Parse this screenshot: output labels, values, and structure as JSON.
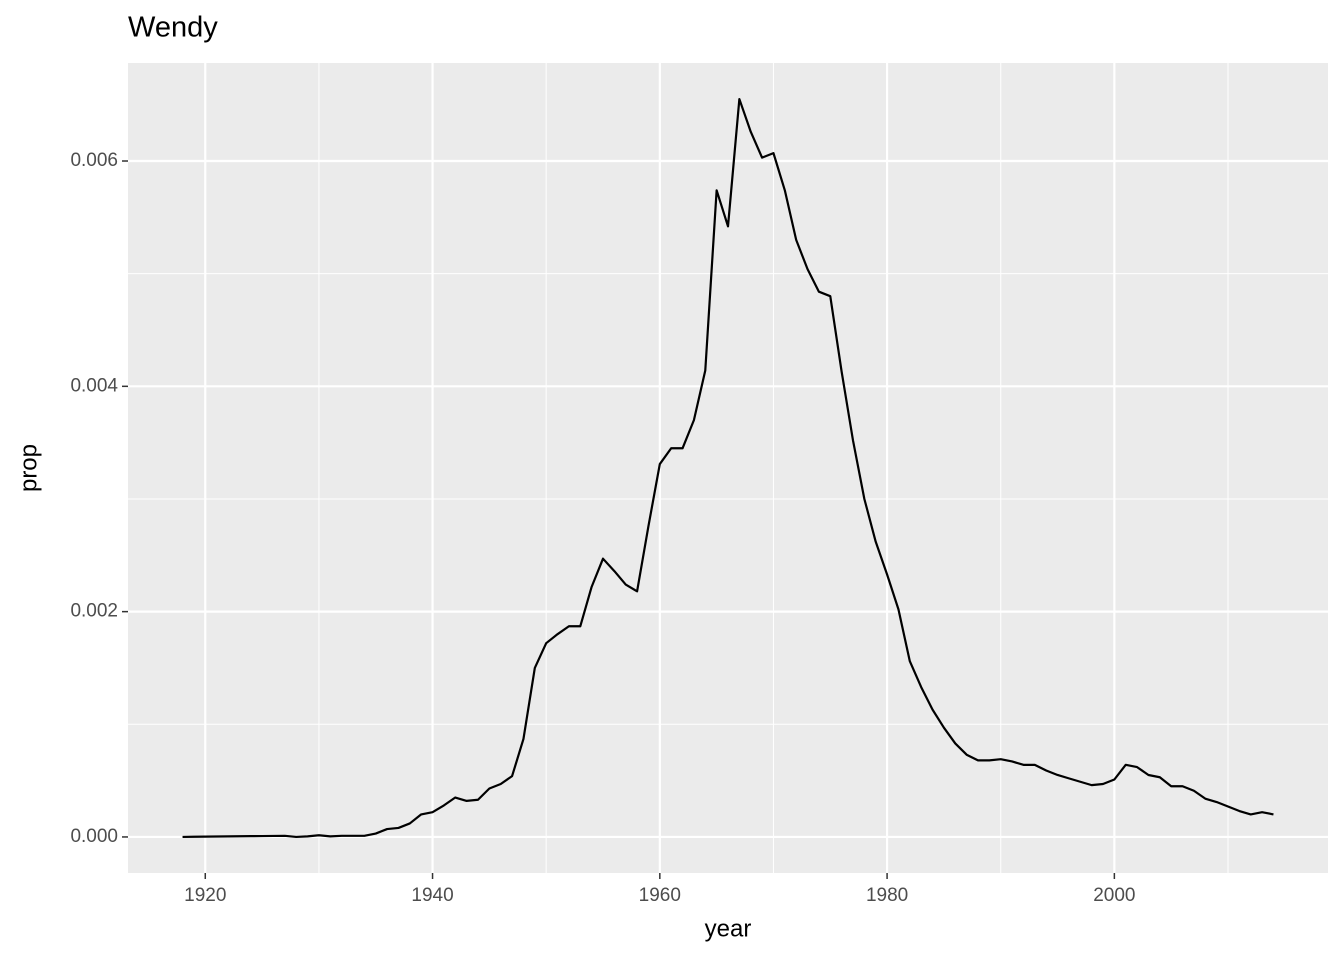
{
  "chart_data": {
    "type": "line",
    "title": "Wendy",
    "x_label": "year",
    "y_label": "prop",
    "x": [
      1918,
      1919,
      1920,
      1921,
      1922,
      1923,
      1924,
      1925,
      1926,
      1927,
      1928,
      1929,
      1930,
      1931,
      1932,
      1933,
      1934,
      1935,
      1936,
      1937,
      1938,
      1939,
      1940,
      1941,
      1942,
      1943,
      1944,
      1945,
      1946,
      1947,
      1948,
      1949,
      1950,
      1951,
      1952,
      1953,
      1954,
      1955,
      1956,
      1957,
      1958,
      1959,
      1960,
      1961,
      1962,
      1963,
      1964,
      1965,
      1966,
      1967,
      1968,
      1969,
      1970,
      1971,
      1972,
      1973,
      1974,
      1975,
      1976,
      1977,
      1978,
      1979,
      1980,
      1981,
      1982,
      1983,
      1984,
      1985,
      1986,
      1987,
      1988,
      1989,
      1990,
      1991,
      1992,
      1993,
      1994,
      1995,
      1996,
      1997,
      1998,
      1999,
      2000,
      2001,
      2002,
      2003,
      2004,
      2005,
      2006,
      2007,
      2008,
      2009,
      2010,
      2011,
      2012,
      2013,
      2014
    ],
    "values": [
      0,
      2e-06,
      3e-06,
      4e-06,
      5e-06,
      6e-06,
      7e-06,
      8e-06,
      9e-06,
      1e-05,
      0,
      5e-06,
      1.5e-05,
      5e-06,
      1e-05,
      1e-05,
      1e-05,
      3e-05,
      7e-05,
      8e-05,
      0.00012,
      0.0002,
      0.00022,
      0.00028,
      0.00035,
      0.00032,
      0.00033,
      0.00043,
      0.00047,
      0.00054,
      0.00087,
      0.0015,
      0.00172,
      0.0018,
      0.00187,
      0.00187,
      0.00222,
      0.00247,
      0.00236,
      0.00224,
      0.00218,
      0.00276,
      0.00331,
      0.00345,
      0.00345,
      0.0037,
      0.00414,
      0.00574,
      0.00542,
      0.00655,
      0.00626,
      0.00603,
      0.00607,
      0.00574,
      0.0053,
      0.00504,
      0.00484,
      0.0048,
      0.00413,
      0.00352,
      0.003,
      0.00262,
      0.00233,
      0.00202,
      0.00156,
      0.00133,
      0.00113,
      0.00097,
      0.00083,
      0.00073,
      0.00068,
      0.00068,
      0.00069,
      0.00067,
      0.00064,
      0.00064,
      0.00059,
      0.00055,
      0.00052,
      0.00049,
      0.00046,
      0.00047,
      0.00051,
      0.00064,
      0.00062,
      0.00055,
      0.00053,
      0.00045,
      0.00045,
      0.00041,
      0.00034,
      0.00031,
      0.00027,
      0.00023,
      0.0002,
      0.00022,
      0.0002
    ],
    "color": "#000000",
    "xlim": [
      1913.2,
      2018.8
    ],
    "xticks": [
      1920,
      1940,
      1960,
      1980,
      2000
    ],
    "ylim": [
      -0.00032,
      0.00687
    ],
    "yticks": [
      {
        "value": 0,
        "label": "0.000"
      },
      {
        "value": 0.002,
        "label": "0.002"
      },
      {
        "value": 0.004,
        "label": "0.004"
      },
      {
        "value": 0.006,
        "label": "0.006"
      }
    ],
    "grid": true
  }
}
